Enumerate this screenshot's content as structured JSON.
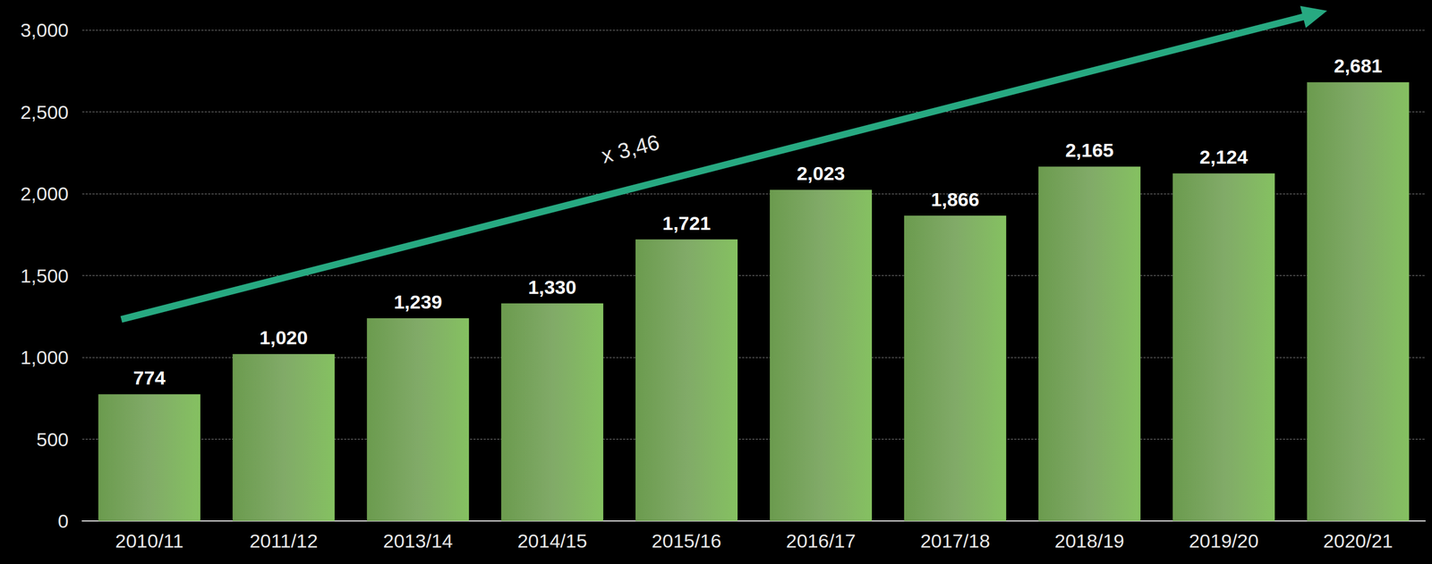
{
  "chart_data": {
    "type": "bar",
    "categories": [
      "2010/11",
      "2011/12",
      "2013/14",
      "2014/15",
      "2015/16",
      "2016/17",
      "2017/18",
      "2018/19",
      "2019/20",
      "2020/21"
    ],
    "values": [
      774,
      1020,
      1239,
      1330,
      1721,
      2023,
      1866,
      2165,
      2124,
      2681
    ],
    "value_labels": [
      "774",
      "1,020",
      "1,239",
      "1,330",
      "1,721",
      "2,023",
      "1,866",
      "2,165",
      "2,124",
      "2,681"
    ],
    "color": "#6b9b4e",
    "ylim": [
      0,
      3000
    ],
    "yticks": [
      0,
      500,
      1000,
      1500,
      2000,
      2500,
      3000
    ],
    "grid": true,
    "data_labels": true,
    "annotation": "x 3,46"
  }
}
